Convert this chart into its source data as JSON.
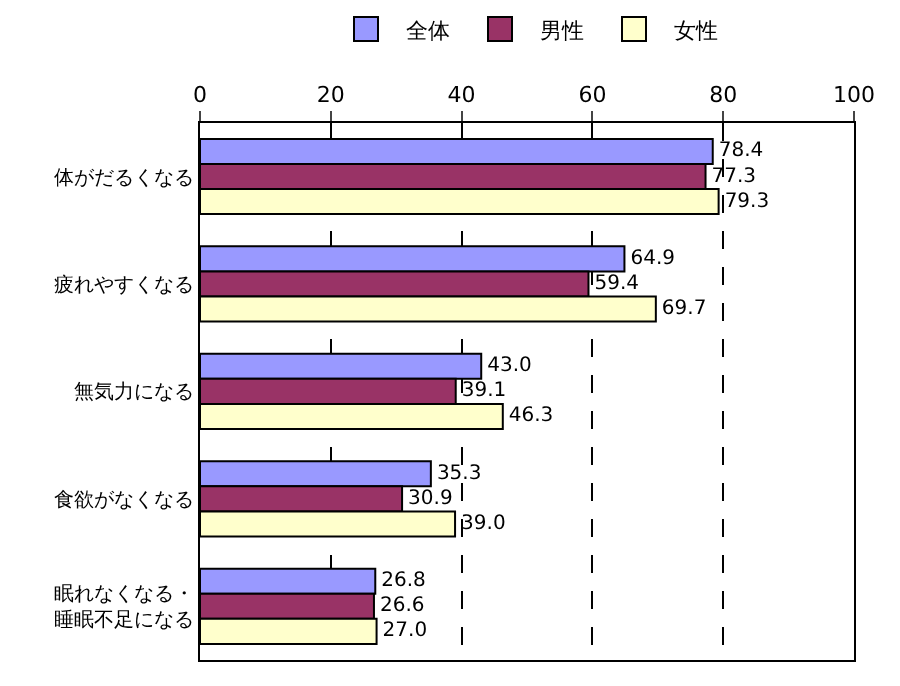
{
  "chart_data": {
    "type": "bar",
    "orientation": "horizontal",
    "categories": [
      "体がだるくなる",
      "疲れやすくなる",
      "無気力になる",
      "食欲がなくなる",
      "眠れなくなる・睡眠不足になる"
    ],
    "series": [
      {
        "name": "全体",
        "color": "#9999ff",
        "values": [
          78.4,
          64.9,
          43.0,
          35.3,
          26.8
        ],
        "value_labels": [
          "78.4",
          "64.9",
          "43.0",
          "35.3",
          "26.8"
        ]
      },
      {
        "name": "男性",
        "color": "#993366",
        "values": [
          77.3,
          59.4,
          39.1,
          30.9,
          26.6
        ],
        "value_labels": [
          "77.3",
          "59.4",
          "39.1",
          "30.9",
          "26.6"
        ]
      },
      {
        "name": "女性",
        "color": "#ffffcc",
        "values": [
          79.3,
          69.7,
          46.3,
          39.0,
          27.0
        ],
        "value_labels": [
          "79.3",
          "69.7",
          "46.3",
          "39.0",
          "27.0"
        ]
      }
    ],
    "xlim": [
      0,
      100
    ],
    "xticks": [
      0,
      20,
      40,
      60,
      80,
      100
    ],
    "grid": "x",
    "legend": "top"
  }
}
